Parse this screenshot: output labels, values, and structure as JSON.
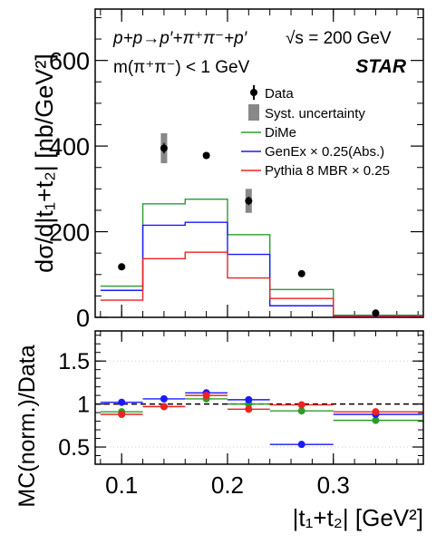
{
  "figure": {
    "process_text": "p+p→p′+π⁺π⁻+p′",
    "energy_text": "√s = 200 GeV",
    "cut_text": "m(π⁺π⁻) < 1 GeV",
    "experiment": "STAR"
  },
  "legend": {
    "items": [
      {
        "label": "Data",
        "kind": "marker",
        "color": "#000000"
      },
      {
        "label": "Syst. uncertainty",
        "kind": "band",
        "color": "#888888"
      },
      {
        "label": "DiMe",
        "kind": "line",
        "color": "#2a9d2a"
      },
      {
        "label": "GenEx × 0.25(Abs.)",
        "kind": "line",
        "color": "#1a1aff"
      },
      {
        "label": "Pythia 8 MBR × 0.25",
        "kind": "line",
        "color": "#ee2222"
      }
    ]
  },
  "chart_data": [
    {
      "type": "line",
      "panel": "top",
      "xlabel": "",
      "ylabel": "dσ/d|t₁+t₂| [nb/GeV²]",
      "xlim": [
        0.075,
        0.385
      ],
      "ylim": [
        0,
        720
      ],
      "y_ticks": [
        0,
        200,
        400,
        600
      ],
      "x_ticks": [
        0.1,
        0.2,
        0.3
      ],
      "bin_edges": [
        0.08,
        0.12,
        0.16,
        0.2,
        0.24,
        0.3,
        0.385
      ],
      "data": {
        "name": "Data",
        "color": "#000000",
        "x": [
          0.1,
          0.14,
          0.18,
          0.22,
          0.27,
          0.34
        ],
        "y": [
          118,
          395,
          378,
          272,
          102,
          10
        ],
        "stat_err": [
          8,
          12,
          8,
          10,
          5,
          2
        ],
        "syst_err": [
          5,
          35,
          6,
          28,
          3,
          1
        ]
      },
      "series": [
        {
          "name": "DiMe",
          "color": "#2a9d2a",
          "values": [
            73,
            265,
            276,
            193,
            65,
            5
          ]
        },
        {
          "name": "GenEx × 0.25(Abs.)",
          "color": "#1a1aff",
          "values": [
            63,
            215,
            222,
            147,
            27,
            3
          ]
        },
        {
          "name": "Pythia 8 MBR × 0.25",
          "color": "#ee2222",
          "values": [
            40,
            137,
            152,
            92,
            44,
            3
          ]
        }
      ]
    },
    {
      "type": "scatter",
      "panel": "bottom",
      "xlabel": "|t₁+t₂| [GeV²]",
      "ylabel": "MC(norm.)/Data",
      "xlim": [
        0.075,
        0.385
      ],
      "ylim": [
        0.3,
        1.85
      ],
      "y_ticks": [
        0.5,
        1,
        1.5
      ],
      "x_ticks": [
        0.1,
        0.2,
        0.3
      ],
      "reference_line": 1.0,
      "x": [
        0.1,
        0.14,
        0.18,
        0.22,
        0.27,
        0.34
      ],
      "bin_edges": [
        0.08,
        0.12,
        0.16,
        0.2,
        0.24,
        0.3,
        0.385
      ],
      "series": [
        {
          "name": "DiMe",
          "color": "#2a9d2a",
          "values": [
            0.91,
            0.97,
            1.06,
            1.0,
            0.92,
            0.81
          ]
        },
        {
          "name": "GenEx × 0.25(Abs.)",
          "color": "#1a1aff",
          "values": [
            1.02,
            1.06,
            1.13,
            1.05,
            0.53,
            0.88
          ]
        },
        {
          "name": "Pythia 8 MBR × 0.25",
          "color": "#ee2222",
          "values": [
            0.88,
            0.97,
            1.1,
            0.94,
            0.99,
            0.91
          ]
        }
      ]
    }
  ]
}
